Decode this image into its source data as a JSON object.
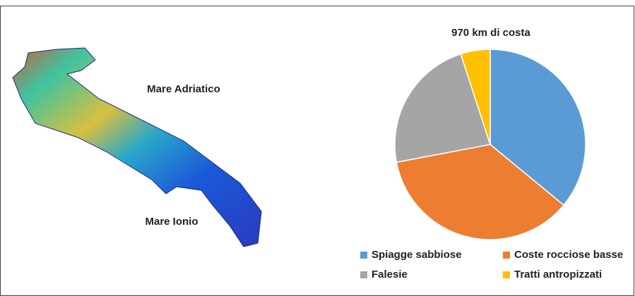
{
  "map": {
    "labels": [
      "Mare Adriatico",
      "Mare Ionio"
    ]
  },
  "chart_data": {
    "type": "pie",
    "title": "970 km di costa",
    "categories": [
      "Spiagge sabbiose",
      "Coste rocciose basse",
      "Falesie",
      "Tratti antropizzati"
    ],
    "values": [
      36,
      36,
      23,
      5
    ],
    "colors": [
      "#5b9bd5",
      "#ed7d31",
      "#a5a5a5",
      "#ffc000"
    ]
  }
}
